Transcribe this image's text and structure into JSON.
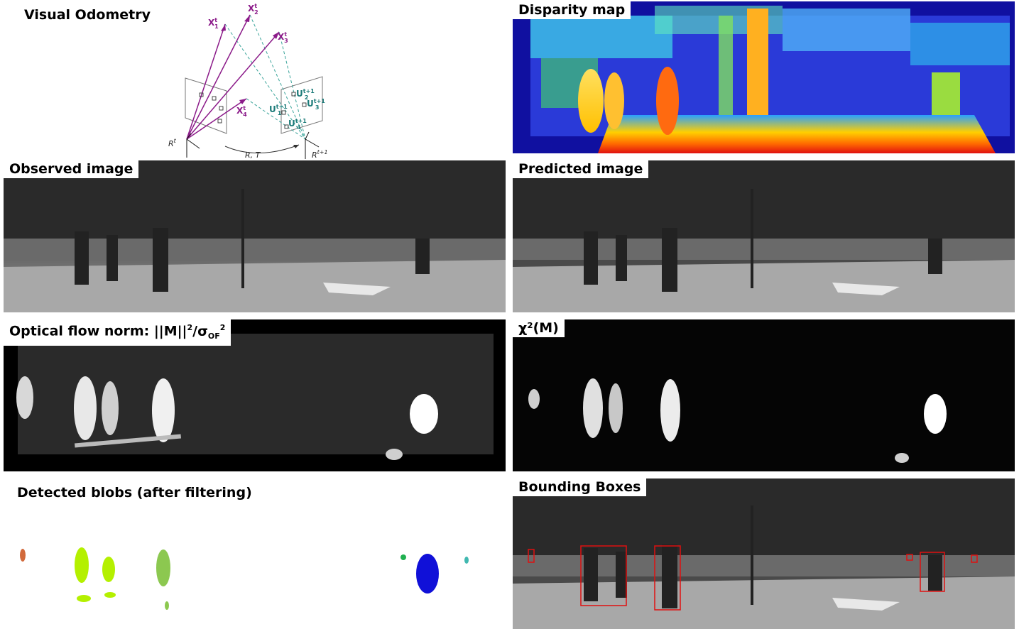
{
  "visual_odometry": {
    "title": "Visual Odometry",
    "points": [
      "X",
      "X",
      "X",
      "X"
    ],
    "point_subs": [
      "1",
      "2",
      "3",
      "4"
    ],
    "point_sup": "t",
    "projections": [
      "U",
      "U",
      "U",
      "U"
    ],
    "proj_subs": [
      "1",
      "2",
      "3",
      "4"
    ],
    "proj_sup": "t+1",
    "frame_t": "R",
    "frame_t_sup": "t",
    "frame_t1": "R",
    "frame_t1_sup": "t+1",
    "motion": "R, T",
    "colors": {
      "points": "#8b1a89",
      "projections": "#1a7a78"
    }
  },
  "disparity": {
    "title": "Disparity map"
  },
  "observed": {
    "title": "Observed image"
  },
  "predicted": {
    "title": "Predicted image"
  },
  "flow": {
    "title_prefix": "Optical flow norm: ||M||",
    "title_exp": "2",
    "title_mid": "/σ",
    "title_sub": "OF",
    "title_sup": "2"
  },
  "chi": {
    "title": "χ²(M)"
  },
  "blobs": {
    "title": "Detected blobs (after filtering)",
    "colors": [
      "#d26a3c",
      "#b4f000",
      "#8cc850",
      "#1010d8",
      "#20b050",
      "#40b8b0"
    ]
  },
  "bboxes": {
    "title": "Bounding Boxes",
    "box_color": "#e01010"
  }
}
